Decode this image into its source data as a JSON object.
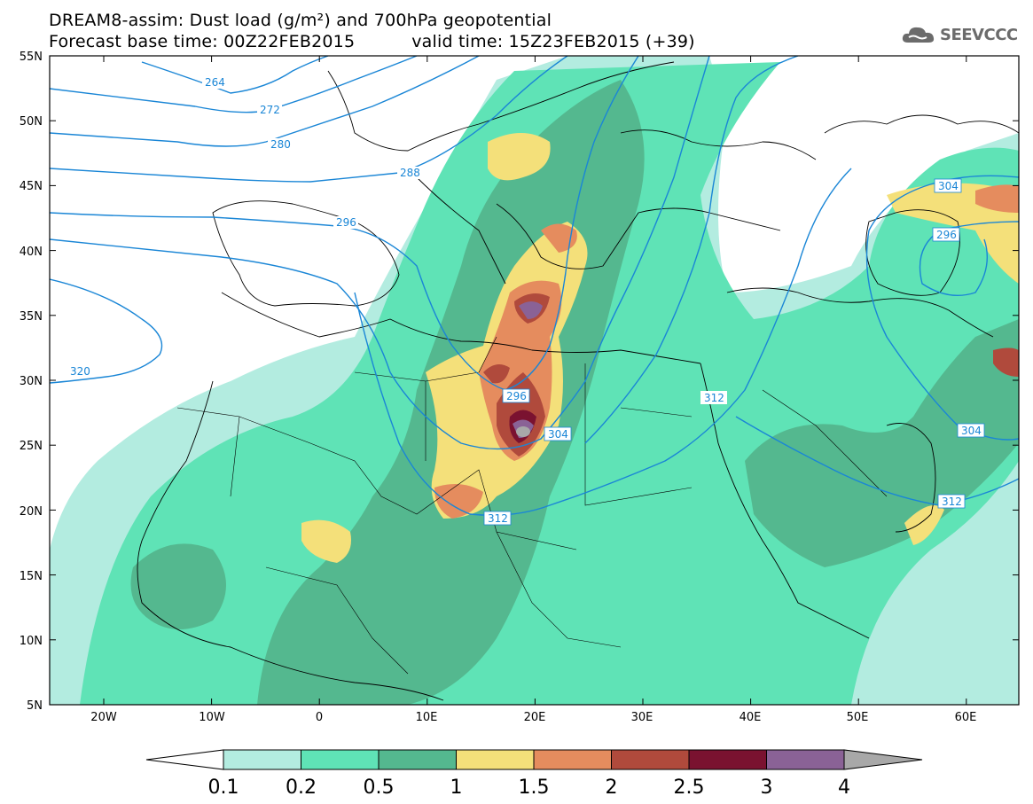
{
  "title": {
    "line1": "DREAM8-assim: Dust load (g/m²) and 700hPa geopotential",
    "base_time": "Forecast base time: 00Z22FEB2015",
    "valid_time": "valid time: 15Z23FEB2015 (+39)"
  },
  "logo": {
    "text": "SEEVCCC",
    "icon": "cloud-icon"
  },
  "axes": {
    "lat_labels": [
      "55N",
      "50N",
      "45N",
      "40N",
      "35N",
      "30N",
      "25N",
      "20N",
      "15N",
      "10N",
      "5N"
    ],
    "lon_labels": [
      "20W",
      "10W",
      "0",
      "10E",
      "20E",
      "30E",
      "40E",
      "50E",
      "60E"
    ]
  },
  "contour_labels": [
    "264",
    "272",
    "280",
    "288",
    "296",
    "320",
    "296",
    "304",
    "312",
    "312",
    "304",
    "304",
    "296",
    "312"
  ],
  "colorbar": {
    "ticks": [
      "0.1",
      "0.2",
      "0.5",
      "1",
      "1.5",
      "2",
      "2.5",
      "3",
      "4"
    ],
    "colors": [
      "#b3ece0",
      "#5fe3b6",
      "#54b88f",
      "#f4e07a",
      "#e58c5e",
      "#b04a3c",
      "#7a1230",
      "#8a6296",
      "#a8a8a8"
    ]
  },
  "colors": {
    "contour": "#1a86d6",
    "land_base": "#ffffff",
    "border": "#000000"
  }
}
